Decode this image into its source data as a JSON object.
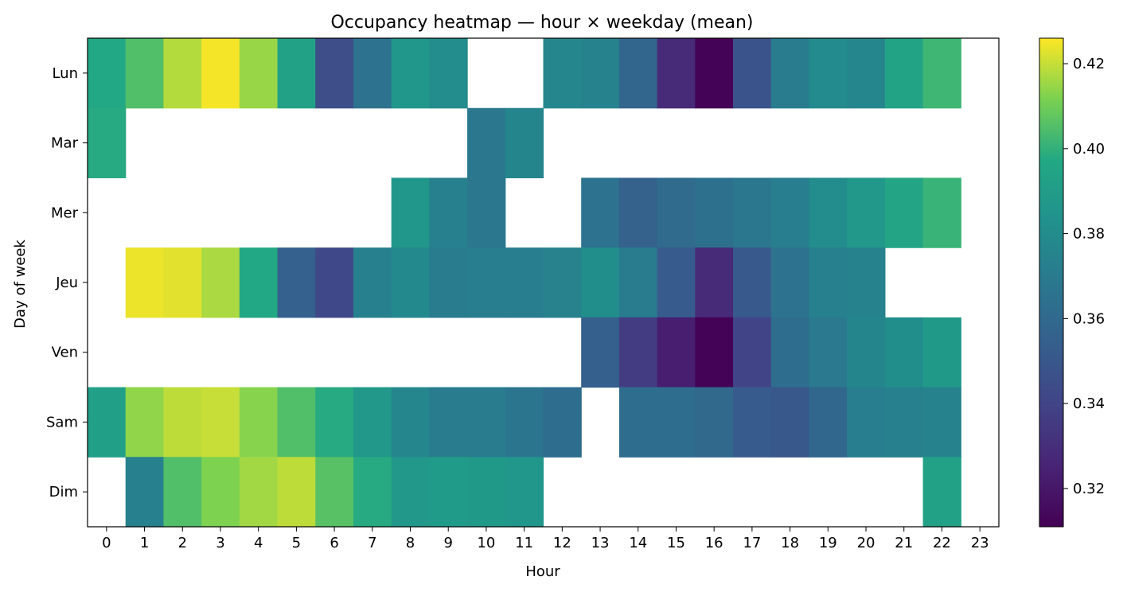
{
  "chart_data": {
    "type": "heatmap",
    "title": "Occupancy heatmap — hour × weekday (mean)",
    "xlabel": "Hour",
    "ylabel": "Day of week",
    "x": [
      "0",
      "1",
      "2",
      "3",
      "4",
      "5",
      "6",
      "7",
      "8",
      "9",
      "10",
      "11",
      "12",
      "13",
      "14",
      "15",
      "16",
      "17",
      "18",
      "19",
      "20",
      "21",
      "22",
      "23"
    ],
    "y": [
      "Lun",
      "Mar",
      "Mer",
      "Jeu",
      "Ven",
      "Sam",
      "Dim"
    ],
    "colormap": "viridis",
    "color_range": [
      0.311,
      0.426
    ],
    "colorbar_ticks": [
      "0.32",
      "0.34",
      "0.36",
      "0.38",
      "0.40",
      "0.42"
    ],
    "grid": false,
    "values": [
      [
        0.397,
        0.405,
        0.418,
        0.425,
        0.415,
        0.393,
        0.345,
        0.365,
        0.386,
        0.38,
        null,
        null,
        0.377,
        0.375,
        0.358,
        0.328,
        0.312,
        0.348,
        0.371,
        0.379,
        0.377,
        0.394,
        0.402,
        null
      ],
      [
        0.398,
        null,
        null,
        null,
        null,
        null,
        null,
        null,
        null,
        null,
        0.368,
        0.376,
        null,
        null,
        null,
        null,
        null,
        null,
        null,
        null,
        null,
        null,
        null,
        null
      ],
      [
        null,
        null,
        null,
        null,
        null,
        null,
        null,
        null,
        0.386,
        0.373,
        0.368,
        null,
        null,
        0.365,
        0.356,
        0.361,
        0.364,
        0.368,
        0.372,
        0.38,
        0.387,
        0.395,
        0.401,
        null
      ],
      [
        null,
        0.424,
        0.423,
        0.417,
        0.397,
        0.355,
        0.342,
        0.373,
        0.378,
        0.37,
        0.372,
        0.372,
        0.374,
        0.381,
        0.371,
        0.352,
        0.328,
        0.351,
        0.365,
        0.373,
        0.375,
        null,
        null,
        null
      ],
      [
        null,
        null,
        null,
        null,
        null,
        null,
        null,
        null,
        null,
        null,
        null,
        null,
        null,
        0.354,
        0.336,
        0.323,
        0.312,
        0.34,
        0.362,
        0.369,
        0.376,
        0.381,
        0.388,
        null
      ],
      [
        0.392,
        0.414,
        0.419,
        0.42,
        0.413,
        0.405,
        0.398,
        0.387,
        0.377,
        0.37,
        0.37,
        0.367,
        0.362,
        null,
        0.362,
        0.362,
        0.36,
        0.352,
        0.35,
        0.359,
        0.372,
        0.373,
        0.375,
        null
      ],
      [
        null,
        0.373,
        0.405,
        0.412,
        0.416,
        0.419,
        0.406,
        0.398,
        0.387,
        0.389,
        0.388,
        0.386,
        null,
        null,
        null,
        null,
        null,
        null,
        null,
        null,
        null,
        null,
        0.393,
        null
      ]
    ]
  }
}
